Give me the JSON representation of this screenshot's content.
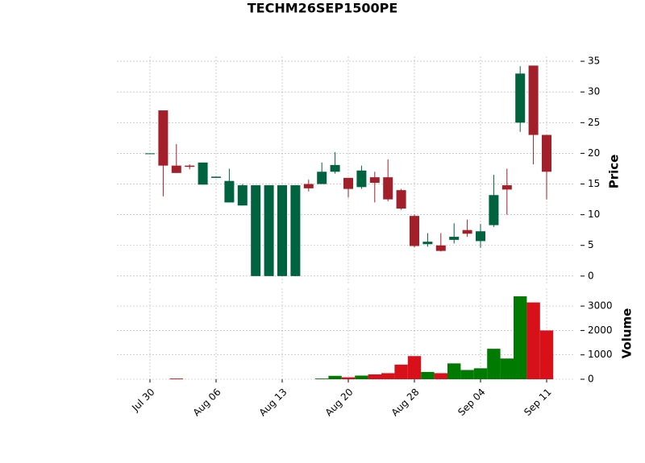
{
  "chart_data": {
    "type": "candlestick",
    "title": "TECHM26SEP1500PE",
    "categories": [
      "Jul 30",
      null,
      null,
      null,
      null,
      "Aug 06",
      null,
      null,
      null,
      null,
      "Aug 13",
      null,
      null,
      null,
      null,
      "Aug 20",
      null,
      null,
      null,
      null,
      "Aug 28",
      null,
      null,
      null,
      null,
      "Sep 04",
      null,
      null,
      null,
      null,
      "Sep 11"
    ],
    "open": [
      20,
      27,
      18,
      18,
      14.9,
      16,
      12,
      11.5,
      0,
      0,
      0,
      0,
      15,
      15,
      17,
      16,
      14.5,
      16.1,
      16.1,
      14,
      9.8,
      5.2,
      5,
      5.9,
      7.5,
      5.7,
      8.3,
      14.8,
      25,
      34.3,
      23
    ],
    "high": [
      20,
      27,
      21.5,
      18.2,
      18.5,
      16.2,
      17.5,
      15,
      14.8,
      14.8,
      14.8,
      14.8,
      15.7,
      18.5,
      20.2,
      16,
      18,
      17,
      19,
      14.2,
      10,
      7,
      7,
      8.6,
      9.2,
      8.5,
      16.5,
      17.5,
      34.2,
      34.3,
      23
    ],
    "low": [
      20,
      13,
      16.8,
      17.4,
      14.9,
      16,
      12,
      11.5,
      0,
      0,
      0,
      0,
      13.8,
      15,
      16.7,
      12.8,
      14.2,
      12,
      12.2,
      10.8,
      4.7,
      4.8,
      4,
      5.3,
      6.4,
      4.6,
      8,
      10,
      23.5,
      18.2,
      12.5
    ],
    "close": [
      20,
      18,
      16.8,
      17.8,
      18.5,
      16.2,
      15.5,
      14.8,
      14.8,
      14.8,
      14.8,
      14.8,
      14.3,
      17,
      18.1,
      14.2,
      17.2,
      15.2,
      12.5,
      11,
      4.9,
      5.6,
      4.1,
      6.4,
      6.9,
      7.3,
      13.2,
      14.1,
      33,
      23,
      17
    ],
    "volume": [
      0,
      0,
      30,
      0,
      0,
      0,
      0,
      0,
      0,
      0,
      0,
      0,
      0,
      30,
      140,
      80,
      150,
      200,
      250,
      600,
      950,
      300,
      250,
      650,
      380,
      450,
      1250,
      850,
      3400,
      3150,
      2000
    ],
    "volume_colors": [
      "#007a00",
      "#007a00",
      "#d7101a",
      "#007a00",
      "#007a00",
      "#007a00",
      "#007a00",
      "#007a00",
      "#007a00",
      "#007a00",
      "#007a00",
      "#007a00",
      "#007a00",
      "#007a00",
      "#007a00",
      "#d7101a",
      "#007a00",
      "#d7101a",
      "#d7101a",
      "#d7101a",
      "#d7101a",
      "#007a00",
      "#d7101a",
      "#007a00",
      "#007a00",
      "#007a00",
      "#007a00",
      "#007a00",
      "#007a00",
      "#d7101a",
      "#d7101a"
    ],
    "up_color": "#006340",
    "down_color": "#a31f2a",
    "ylabel": "Price",
    "y2label": "Volume",
    "ylim": [
      -1.2,
      35.8
    ],
    "yticks": [
      0,
      5,
      10,
      15,
      20,
      25,
      30,
      35
    ],
    "y2lim": [
      0,
      3730
    ],
    "y2ticks": [
      0,
      1000,
      2000,
      3000
    ],
    "grid": true
  }
}
